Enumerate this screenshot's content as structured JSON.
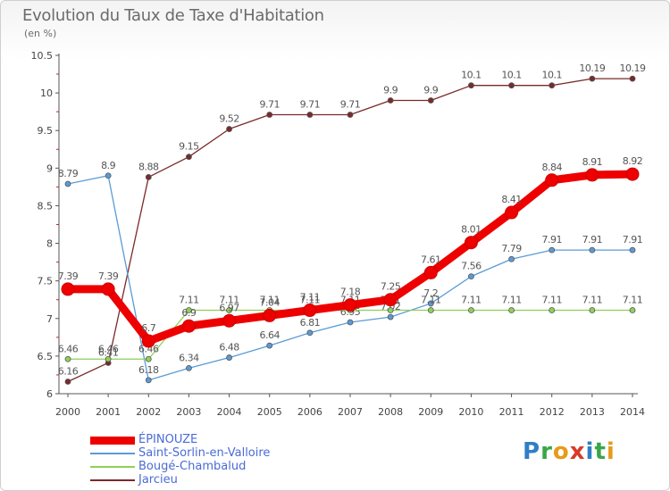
{
  "title": "Evolution du Taux de Taxe d'Habitation",
  "unit_label": "(en %)",
  "logo": {
    "text": "Proxiti",
    "letters": [
      {
        "ch": "P",
        "color": "#2f7fc4"
      },
      {
        "ch": "r",
        "color": "#3aa64a"
      },
      {
        "ch": "o",
        "color": "#e89a1a"
      },
      {
        "ch": "x",
        "color": "#d83a2a"
      },
      {
        "ch": "i",
        "color": "#2f7fc4"
      },
      {
        "ch": "t",
        "color": "#3aa64a"
      },
      {
        "ch": "i",
        "color": "#e89a1a"
      }
    ]
  },
  "chart_data": {
    "type": "line",
    "title": "Evolution du Taux de Taxe d'Habitation",
    "xlabel": "",
    "ylabel": "(en %)",
    "categories": [
      "2000",
      "2001",
      "2002",
      "2003",
      "2004",
      "2005",
      "2006",
      "2007",
      "2008",
      "2009",
      "2010",
      "2011",
      "2012",
      "2013",
      "2014"
    ],
    "ylim": [
      6,
      10.5
    ],
    "yticks": [
      6,
      6.5,
      7,
      7.5,
      8,
      8.5,
      9,
      9.5,
      10,
      10.5
    ],
    "ytick_labels": [
      "6",
      "6.5",
      "7",
      "7.5",
      "8",
      "8.5",
      "9",
      "9.5",
      "10",
      "10.5"
    ],
    "grid": false,
    "legend_position": "bottom-left",
    "series": [
      {
        "name": "Jarcieu",
        "color": "#7a2a2a",
        "values": [
          6.16,
          6.41,
          8.88,
          9.15,
          9.52,
          9.71,
          9.71,
          9.71,
          9.9,
          9.9,
          10.1,
          10.1,
          10.1,
          10.19,
          10.19
        ],
        "labels": [
          "6.16",
          "6.41",
          "8.88",
          "9.15",
          "9.52",
          "9.71",
          "9.71",
          "9.71",
          "9.9",
          "9.9",
          "10.1",
          "10.1",
          "10.1",
          "10.19",
          "10.19"
        ]
      },
      {
        "name": "Saint-Sorlin-en-Valloire",
        "color": "#5b9bd5",
        "values": [
          8.79,
          8.9,
          6.18,
          6.34,
          6.48,
          6.64,
          6.81,
          6.95,
          7.02,
          7.2,
          7.56,
          7.79,
          7.91,
          7.91,
          7.91
        ],
        "labels": [
          "8.79",
          "8.9",
          "6.18",
          "6.34",
          "6.48",
          "6.64",
          "6.81",
          "6.95",
          "7.02",
          "7.2",
          "7.56",
          "7.79",
          "7.91",
          "7.91",
          "7.91"
        ]
      },
      {
        "name": "Bougé-Chambalud",
        "color": "#8fd05a",
        "values": [
          6.46,
          6.46,
          6.46,
          7.11,
          7.11,
          7.11,
          7.11,
          7.11,
          7.11,
          7.11,
          7.11,
          7.11,
          7.11,
          7.11,
          7.11
        ],
        "labels": [
          "6.46",
          "6.46",
          "6.46",
          "7.11",
          "7.11",
          "7.11",
          "7.11",
          "7.11",
          "7.11",
          "7.11",
          "7.11",
          "7.11",
          "7.11",
          "7.11",
          "7.11"
        ]
      },
      {
        "name": "ÉPINOUZE",
        "color": "#ee0000",
        "values": [
          7.39,
          7.39,
          6.7,
          6.9,
          6.97,
          7.04,
          7.11,
          7.18,
          7.25,
          7.61,
          8.01,
          8.41,
          8.84,
          8.91,
          8.92
        ],
        "labels": [
          "7.39",
          "7.39",
          "6.7",
          "6.9",
          "6.97",
          "7.04",
          "7.11",
          "7.18",
          "7.25",
          "7.61",
          "8.01",
          "8.41",
          "8.84",
          "8.91",
          "8.92"
        ]
      }
    ],
    "legend": [
      "ÉPINOUZE",
      "Saint-Sorlin-en-Valloire",
      "Bougé-Chambalud",
      "Jarcieu"
    ]
  }
}
